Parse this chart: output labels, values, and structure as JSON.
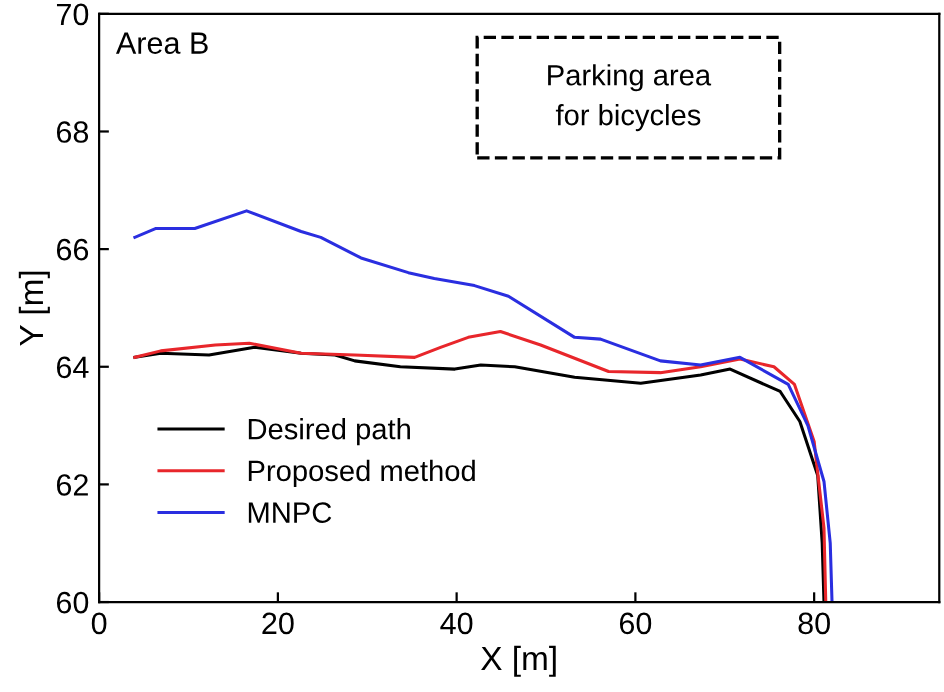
{
  "chart_data": {
    "type": "line",
    "xlabel": "X [m]",
    "ylabel": "Y [m]",
    "xlim": [
      0,
      94
    ],
    "ylim": [
      60,
      70
    ],
    "xticks": [
      0,
      20,
      40,
      60,
      80
    ],
    "yticks": [
      60,
      62,
      64,
      66,
      68,
      70
    ],
    "grid": false,
    "legend": "bottom left",
    "line_style": "solid",
    "marker": "none",
    "annotations": [
      "Area B",
      "Parking area\nfor bicycles"
    ],
    "series": [
      {
        "name": "Desired path",
        "color": "#000000",
        "x": [
          4,
          6.9,
          12.3,
          17.4,
          22.6,
          26.4,
          28.6,
          33.7,
          39.8,
          42.7,
          46.5,
          53.2,
          60.6,
          67.3,
          70.6,
          76.2,
          78.4,
          80.4,
          80.9,
          81.1
        ],
        "values": [
          64.16,
          64.23,
          64.2,
          64.33,
          64.23,
          64.2,
          64.1,
          64.0,
          63.96,
          64.03,
          64.0,
          63.82,
          63.72,
          63.86,
          63.96,
          63.58,
          63.07,
          62.15,
          61.0,
          60
        ]
      },
      {
        "name": "Proposed method",
        "color": "#e8262b",
        "x": [
          4,
          6.9,
          13,
          16.8,
          22.6,
          28.6,
          35.3,
          38.2,
          41.3,
          44.9,
          49.4,
          57,
          62.8,
          67.3,
          71.7,
          75.5,
          77.8,
          80,
          81.1,
          81.3
        ],
        "values": [
          64.16,
          64.27,
          64.37,
          64.4,
          64.23,
          64.2,
          64.16,
          64.33,
          64.5,
          64.6,
          64.37,
          63.92,
          63.9,
          64.0,
          64.13,
          64.0,
          63.7,
          62.73,
          61.26,
          60
        ]
      },
      {
        "name": "MNPC",
        "color": "#2a2ee0",
        "x": [
          4,
          6.3,
          10.7,
          16.5,
          22.6,
          24.8,
          29.3,
          34.6,
          37.5,
          42,
          45.8,
          53.2,
          56.1,
          62.8,
          67.3,
          71.7,
          77.1,
          79.3,
          81.1,
          81.8,
          82
        ],
        "values": [
          66.2,
          66.35,
          66.35,
          66.65,
          66.3,
          66.2,
          65.85,
          65.6,
          65.5,
          65.38,
          65.2,
          64.5,
          64.47,
          64.1,
          64.03,
          64.16,
          63.7,
          63.0,
          62.05,
          61.0,
          60
        ]
      }
    ]
  }
}
